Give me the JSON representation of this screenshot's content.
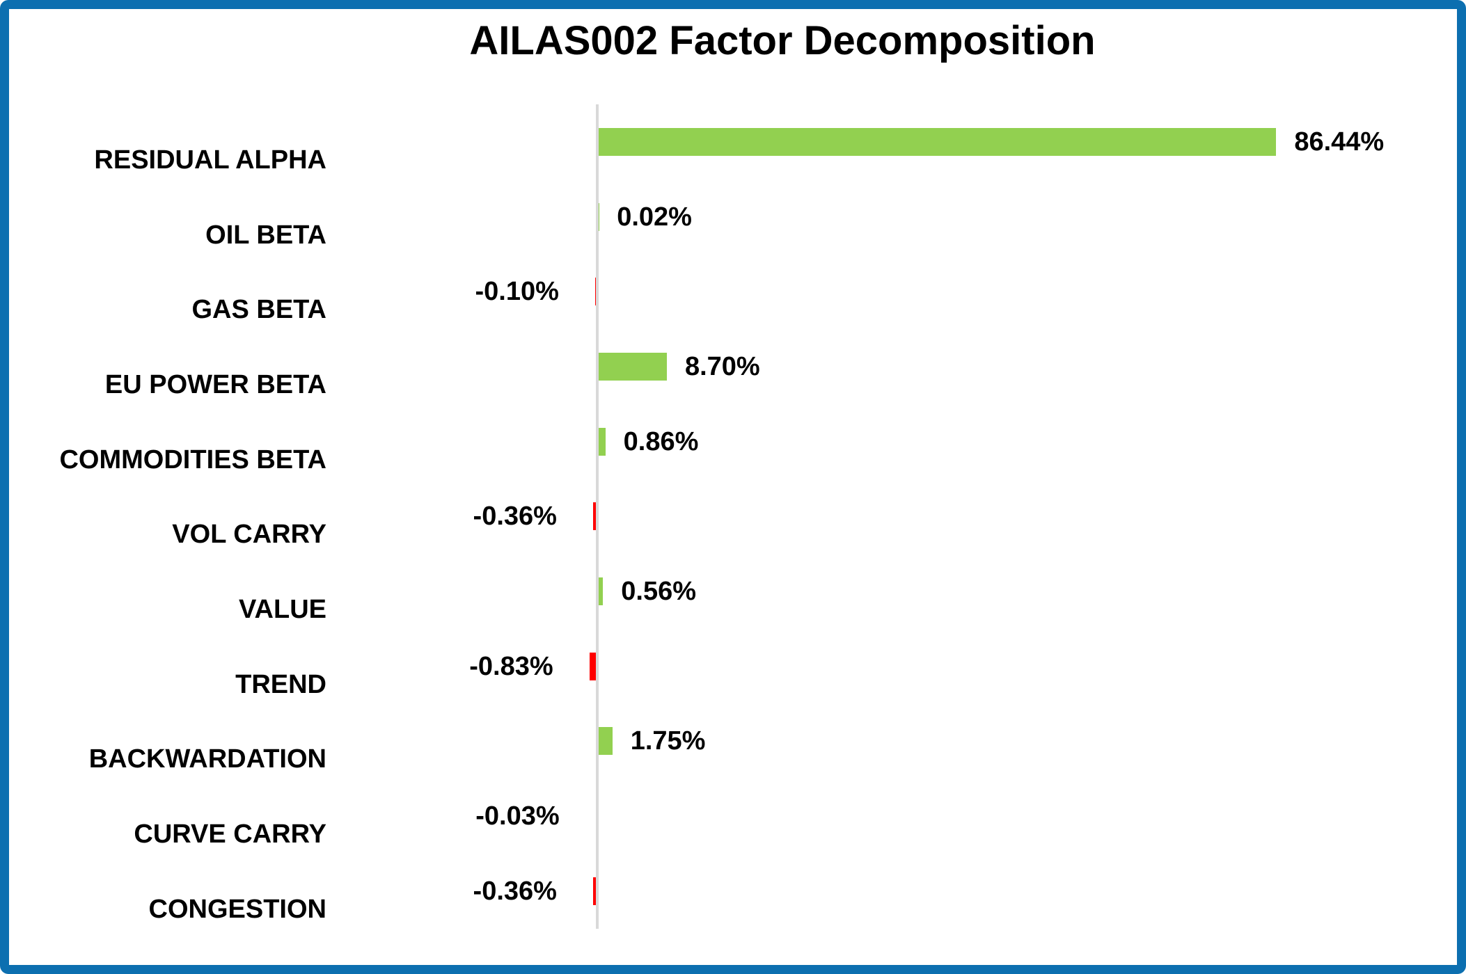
{
  "chart_data": {
    "type": "bar",
    "orientation": "horizontal",
    "title": "AILAS002 Factor Decomposition",
    "categories": [
      "RESIDUAL ALPHA",
      "OIL BETA",
      "GAS BETA",
      "EU POWER BETA",
      "COMMODITIES BETA",
      "VOL CARRY",
      "VALUE",
      "TREND",
      "BACKWARDATION",
      "CURVE CARRY",
      "CONGESTION"
    ],
    "values": [
      86.44,
      0.02,
      -0.1,
      8.7,
      0.86,
      -0.36,
      0.56,
      -0.83,
      1.75,
      -0.03,
      -0.36
    ],
    "value_labels": [
      "86.44%",
      "0.02%",
      "-0.10%",
      "8.70%",
      "0.86%",
      "-0.36%",
      "0.56%",
      "-0.83%",
      "1.75%",
      "-0.03%",
      "-0.36%"
    ],
    "unit": "%",
    "grid": "off",
    "legend": "none",
    "data_label_position": "outside-end",
    "positive_color": "#92D050",
    "negative_color": "#FF0000",
    "axis_line_color": "#D9D9D9",
    "text_color": "#000000"
  },
  "frame": {
    "border_color": "#0C6FB0",
    "background": "#FFFFFF"
  }
}
